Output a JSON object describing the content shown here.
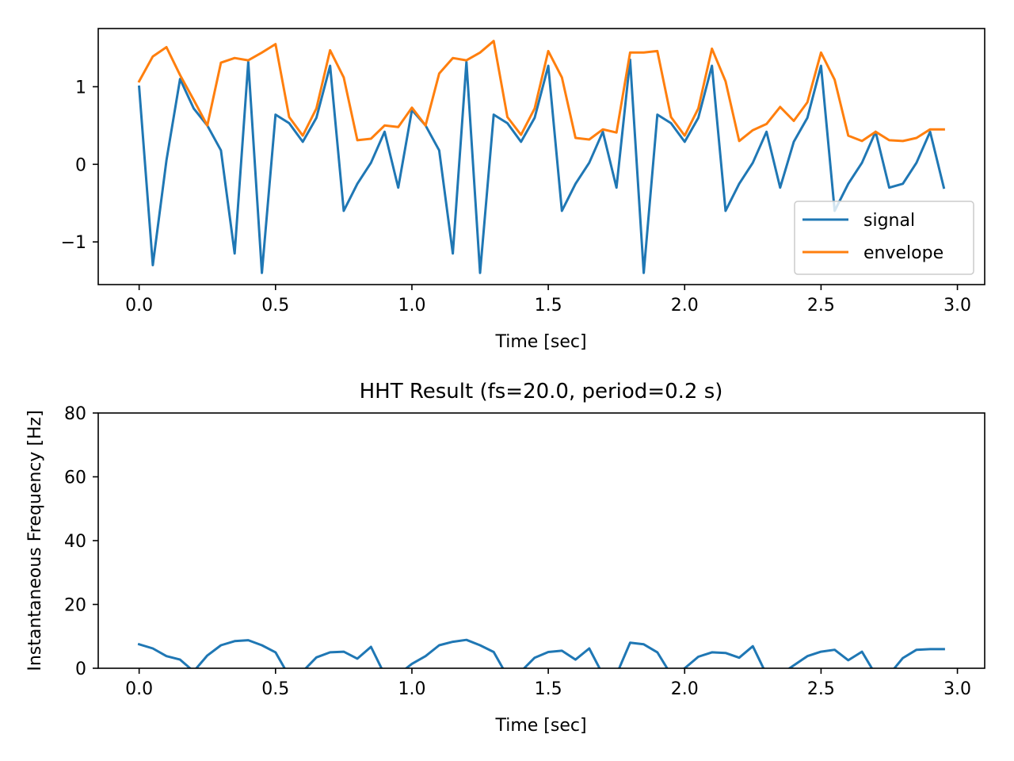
{
  "chart_data": [
    {
      "type": "line",
      "title": "",
      "xlabel": "Time [sec]",
      "ylabel": "",
      "xlim": [
        -0.15,
        3.1
      ],
      "ylim": [
        -1.55,
        1.75
      ],
      "xticks": [
        0.0,
        0.5,
        1.0,
        1.5,
        2.0,
        2.5,
        3.0
      ],
      "xtick_labels": [
        "0.0",
        "0.5",
        "1.0",
        "1.5",
        "2.0",
        "2.5",
        "3.0"
      ],
      "yticks": [
        -1,
        0,
        1
      ],
      "ytick_labels": [
        "−1",
        "0",
        "1"
      ],
      "grid": false,
      "legend": "lower-right",
      "x": [
        0.0,
        0.05,
        0.1,
        0.15,
        0.2,
        0.25,
        0.3,
        0.35,
        0.4,
        0.45,
        0.5,
        0.55,
        0.6,
        0.65,
        0.7,
        0.75,
        0.8,
        0.85,
        0.9,
        0.95,
        1.0,
        1.05,
        1.1,
        1.15,
        1.2,
        1.25,
        1.3,
        1.35,
        1.4,
        1.45,
        1.5,
        1.55,
        1.6,
        1.65,
        1.7,
        1.75,
        1.8,
        1.85,
        1.9,
        1.95,
        2.0,
        2.05,
        2.1,
        2.15,
        2.2,
        2.25,
        2.3,
        2.35,
        2.4,
        2.45,
        2.5,
        2.55,
        2.6,
        2.65,
        2.7,
        2.75,
        2.8,
        2.85,
        2.9,
        2.95
      ],
      "series": [
        {
          "name": "signal",
          "color": "#1f77b4",
          "values": [
            1.0,
            -1.3,
            0.05,
            1.1,
            0.72,
            0.5,
            0.18,
            -1.15,
            1.32,
            -1.4,
            0.64,
            0.53,
            0.29,
            0.6,
            1.27,
            -0.6,
            -0.25,
            0.02,
            0.42,
            -0.3,
            0.7,
            0.5,
            0.18,
            -1.15,
            1.32,
            -1.4,
            0.64,
            0.53,
            0.29,
            0.6,
            1.27,
            -0.6,
            -0.25,
            0.02,
            0.42,
            -0.3,
            1.35,
            -1.4,
            0.64,
            0.53,
            0.29,
            0.6,
            1.27,
            -0.6,
            -0.25,
            0.02,
            0.42,
            -0.3,
            0.29,
            0.6,
            1.27,
            -0.6,
            -0.25,
            0.02,
            0.42,
            -0.3,
            -0.25,
            0.02,
            0.42,
            -0.3
          ]
        },
        {
          "name": "envelope",
          "color": "#ff7f0e",
          "values": [
            1.07,
            1.39,
            1.51,
            1.15,
            0.83,
            0.5,
            1.31,
            1.37,
            1.34,
            1.44,
            1.55,
            0.61,
            0.37,
            0.72,
            1.47,
            1.12,
            0.31,
            0.33,
            0.5,
            0.48,
            0.73,
            0.5,
            1.17,
            1.37,
            1.34,
            1.44,
            1.59,
            0.61,
            0.38,
            0.72,
            1.46,
            1.12,
            0.34,
            0.32,
            0.45,
            0.41,
            1.44,
            1.44,
            1.46,
            0.61,
            0.37,
            0.72,
            1.49,
            1.07,
            0.3,
            0.44,
            0.52,
            0.74,
            0.56,
            0.8,
            1.44,
            1.09,
            0.37,
            0.3,
            0.42,
            0.31,
            0.3,
            0.34,
            0.45,
            0.45
          ]
        }
      ]
    },
    {
      "type": "line",
      "title": "HHT Result (fs=20.0, period=0.2 s)",
      "xlabel": "Time [sec]",
      "ylabel": "Instantaneous Frequency [Hz]",
      "xlim": [
        -0.15,
        3.1
      ],
      "ylim": [
        0,
        80
      ],
      "xticks": [
        0.0,
        0.5,
        1.0,
        1.5,
        2.0,
        2.5,
        3.0
      ],
      "xtick_labels": [
        "0.0",
        "0.5",
        "1.0",
        "1.5",
        "2.0",
        "2.5",
        "3.0"
      ],
      "yticks": [
        0,
        20,
        40,
        60,
        80
      ],
      "ytick_labels": [
        "0",
        "20",
        "40",
        "60",
        "80"
      ],
      "grid": false,
      "x": [
        0.0,
        0.05,
        0.1,
        0.15,
        0.2,
        0.25,
        0.3,
        0.35,
        0.4,
        0.45,
        0.5,
        0.55,
        0.6,
        0.65,
        0.7,
        0.75,
        0.8,
        0.85,
        0.9,
        0.95,
        1.0,
        1.05,
        1.1,
        1.15,
        1.2,
        1.25,
        1.3,
        1.35,
        1.4,
        1.45,
        1.5,
        1.55,
        1.6,
        1.65,
        1.7,
        1.75,
        1.8,
        1.85,
        1.9,
        1.95,
        2.0,
        2.05,
        2.1,
        2.15,
        2.2,
        2.25,
        2.3,
        2.35,
        2.4,
        2.45,
        2.5,
        2.55,
        2.6,
        2.65,
        2.7,
        2.75,
        2.8,
        2.85,
        2.9,
        2.95
      ],
      "series": [
        {
          "color": "#1f77b4",
          "values": [
            7.5,
            6.2,
            3.8,
            2.7,
            -1.0,
            4.0,
            7.2,
            8.5,
            8.8,
            7.2,
            5.0,
            -2.5,
            -1.0,
            3.4,
            5.0,
            5.2,
            3.0,
            6.7,
            -2.0,
            -2.0,
            1.4,
            3.8,
            7.2,
            8.3,
            8.9,
            7.2,
            5.1,
            -2.5,
            -1.0,
            3.3,
            5.1,
            5.5,
            2.7,
            6.2,
            -2.0,
            -2.0,
            8.0,
            7.5,
            5.0,
            -2.0,
            0.0,
            3.6,
            5.0,
            4.8,
            3.3,
            6.9,
            -2.0,
            -2.0,
            0.9,
            3.8,
            5.2,
            5.8,
            2.5,
            5.2,
            -2.0,
            -2.0,
            3.2,
            5.8,
            6.0,
            6.0
          ]
        }
      ]
    }
  ]
}
